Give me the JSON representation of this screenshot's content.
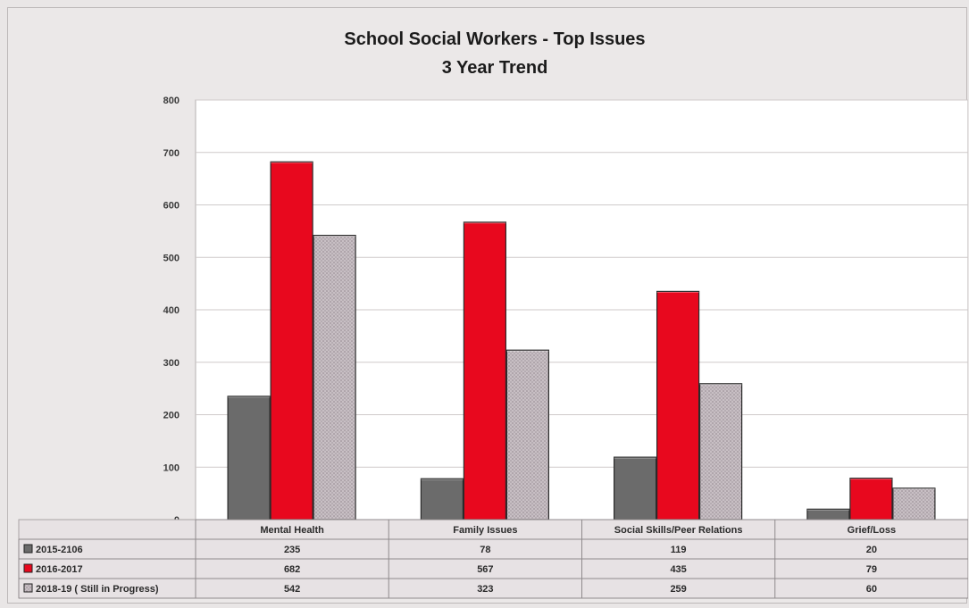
{
  "chart_data": {
    "type": "bar",
    "title": "School Social Workers - Top Issues",
    "subtitle": "3 Year Trend",
    "categories": [
      "Mental Health",
      "Family Issues",
      "Social Skills/Peer Relations",
      "Grief/Loss"
    ],
    "series": [
      {
        "name": "2015-2106",
        "values": [
          235,
          78,
          119,
          20
        ],
        "color": "#6b6b6b"
      },
      {
        "name": "2016-2017",
        "values": [
          682,
          567,
          435,
          79
        ],
        "color": "#e8081e"
      },
      {
        "name": "2018-19 ( Still in Progress)",
        "values": [
          542,
          323,
          259,
          60
        ],
        "color": "#b7aeb3"
      }
    ],
    "ylim": [
      0,
      800
    ],
    "yticks": [
      0,
      100,
      200,
      300,
      400,
      500,
      600,
      700,
      800
    ],
    "grid": true,
    "legend": "data table below chart",
    "xlabel": "",
    "ylabel": ""
  }
}
